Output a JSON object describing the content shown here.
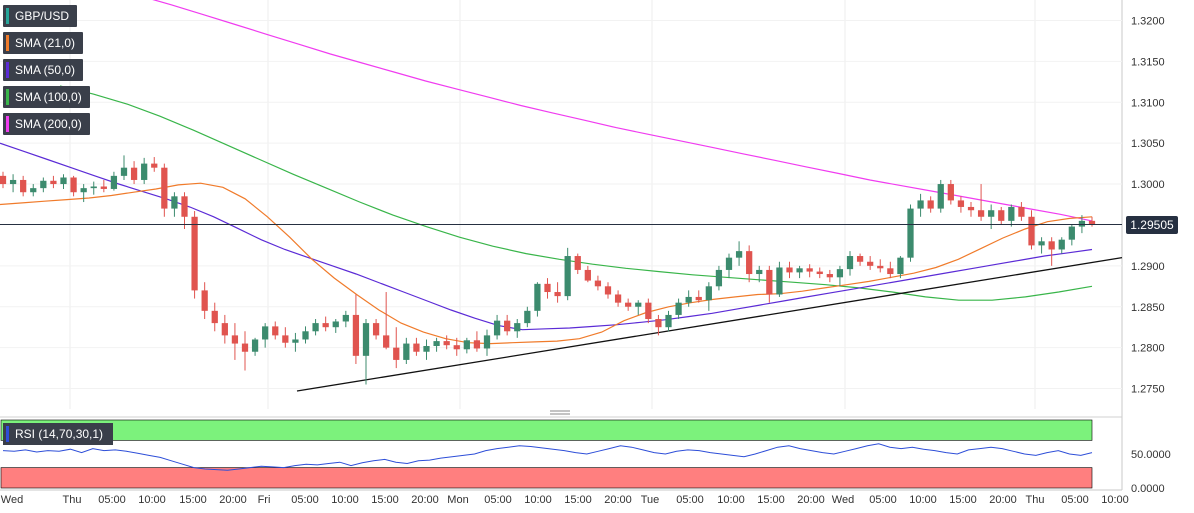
{
  "legend": [
    {
      "label": "GBP/USD",
      "color": "#26a69a"
    },
    {
      "label": "SMA (21,0)",
      "color": "#f07b2b"
    },
    {
      "label": "SMA (50,0)",
      "color": "#5b2bd6"
    },
    {
      "label": "SMA (100,0)",
      "color": "#39b54a"
    },
    {
      "label": "SMA (200,0)",
      "color": "#f03cf0"
    }
  ],
  "current_price_label": "1.29505",
  "rsi_label": "RSI (14,70,30,1)",
  "colors": {
    "up": "#3c8b6e",
    "down": "#e0544f",
    "sma21": "#f07b2b",
    "sma50": "#5b2bd6",
    "sma100": "#39b54a",
    "sma200": "#f03cf0",
    "rsi": "#2d4ed8",
    "overbought": "#7cf27c",
    "oversold": "#ff7f7f"
  },
  "chart_data": [
    {
      "type": "candlestick",
      "title": "",
      "y_ticks": [
        "1.3200",
        "1.3150",
        "1.3100",
        "1.3050",
        "1.3000",
        "1.2900",
        "1.2850",
        "1.2800",
        "1.2750"
      ],
      "ylim": [
        1.2725,
        1.3225
      ],
      "current_price": 1.29505,
      "x_tick_labels": [
        "Wed",
        "Thu",
        "05:00",
        "10:00",
        "15:00",
        "20:00",
        "Fri",
        "05:00",
        "10:00",
        "15:00",
        "20:00",
        "Mon",
        "05:00",
        "10:00",
        "15:00",
        "20:00",
        "Tue",
        "05:00",
        "10:00",
        "15:00",
        "20:00",
        "Wed",
        "05:00",
        "10:00",
        "15:00",
        "20:00",
        "Thu",
        "05:00",
        "10:00"
      ],
      "ohlc": [
        [
          1.301,
          1.3015,
          1.2995,
          1.3
        ],
        [
          1.3,
          1.3012,
          1.299,
          1.3005
        ],
        [
          1.3005,
          1.301,
          1.2985,
          1.299
        ],
        [
          1.299,
          1.3,
          1.2985,
          1.2995
        ],
        [
          1.2995,
          1.3008,
          1.299,
          1.3004
        ],
        [
          1.3004,
          1.301,
          1.2995,
          1.3
        ],
        [
          1.3,
          1.3012,
          1.2994,
          1.3008
        ],
        [
          1.3008,
          1.301,
          1.2985,
          1.299
        ],
        [
          1.299,
          1.3,
          1.2978,
          1.2995
        ],
        [
          1.2995,
          1.3003,
          1.2987,
          1.2997
        ],
        [
          1.2997,
          1.3005,
          1.299,
          1.2994
        ],
        [
          1.2994,
          1.3015,
          1.2992,
          1.301
        ],
        [
          1.301,
          1.3035,
          1.3005,
          1.302
        ],
        [
          1.302,
          1.3028,
          1.3,
          1.3005
        ],
        [
          1.3005,
          1.3032,
          1.3,
          1.3025
        ],
        [
          1.3025,
          1.3033,
          1.3015,
          1.302
        ],
        [
          1.302,
          1.3025,
          1.296,
          1.297
        ],
        [
          1.297,
          1.299,
          1.296,
          1.2985
        ],
        [
          1.2985,
          1.299,
          1.2945,
          1.296
        ],
        [
          1.296,
          1.2967,
          1.286,
          1.287
        ],
        [
          1.287,
          1.288,
          1.2835,
          1.2845
        ],
        [
          1.2845,
          1.2855,
          1.282,
          1.283
        ],
        [
          1.283,
          1.284,
          1.2805,
          1.2815
        ],
        [
          1.2815,
          1.283,
          1.2785,
          1.2805
        ],
        [
          1.2805,
          1.282,
          1.2772,
          1.2795
        ],
        [
          1.2795,
          1.2812,
          1.279,
          1.281
        ],
        [
          1.281,
          1.283,
          1.28,
          1.2826
        ],
        [
          1.2826,
          1.2832,
          1.281,
          1.2815
        ],
        [
          1.2815,
          1.2825,
          1.28,
          1.2806
        ],
        [
          1.2806,
          1.2818,
          1.2795,
          1.281
        ],
        [
          1.281,
          1.2826,
          1.2805,
          1.282
        ],
        [
          1.282,
          1.2835,
          1.2815,
          1.283
        ],
        [
          1.283,
          1.2838,
          1.282,
          1.2825
        ],
        [
          1.2825,
          1.2835,
          1.2818,
          1.2832
        ],
        [
          1.2832,
          1.2845,
          1.2825,
          1.284
        ],
        [
          1.284,
          1.2865,
          1.278,
          1.279
        ],
        [
          1.279,
          1.2835,
          1.2755,
          1.283
        ],
        [
          1.283,
          1.2835,
          1.281,
          1.2815
        ],
        [
          1.2815,
          1.2868,
          1.2798,
          1.28
        ],
        [
          1.28,
          1.2825,
          1.2775,
          1.2785
        ],
        [
          1.2785,
          1.2812,
          1.278,
          1.2805
        ],
        [
          1.2805,
          1.2812,
          1.279,
          1.2795
        ],
        [
          1.2795,
          1.281,
          1.2785,
          1.2802
        ],
        [
          1.2802,
          1.2812,
          1.2795,
          1.2808
        ],
        [
          1.2808,
          1.2815,
          1.2798,
          1.2803
        ],
        [
          1.2803,
          1.2812,
          1.279,
          1.2798
        ],
        [
          1.2798,
          1.2812,
          1.2793,
          1.2809
        ],
        [
          1.2809,
          1.282,
          1.2795,
          1.2799
        ],
        [
          1.2799,
          1.2822,
          1.279,
          1.2815
        ],
        [
          1.2815,
          1.284,
          1.281,
          1.2833
        ],
        [
          1.2833,
          1.284,
          1.2815,
          1.282
        ],
        [
          1.282,
          1.2835,
          1.2812,
          1.283
        ],
        [
          1.283,
          1.285,
          1.2825,
          1.2845
        ],
        [
          1.2845,
          1.288,
          1.2838,
          1.2878
        ],
        [
          1.2878,
          1.2885,
          1.286,
          1.2868
        ],
        [
          1.2868,
          1.288,
          1.2855,
          1.2863
        ],
        [
          1.2863,
          1.2922,
          1.2858,
          1.2912
        ],
        [
          1.2912,
          1.2915,
          1.289,
          1.2895
        ],
        [
          1.2895,
          1.29,
          1.288,
          1.2882
        ],
        [
          1.2882,
          1.2888,
          1.287,
          1.2875
        ],
        [
          1.2875,
          1.288,
          1.286,
          1.2865
        ],
        [
          1.2865,
          1.287,
          1.285,
          1.2855
        ],
        [
          1.2855,
          1.286,
          1.2845,
          1.285
        ],
        [
          1.285,
          1.2858,
          1.284,
          1.2855
        ],
        [
          1.2855,
          1.286,
          1.283,
          1.2835
        ],
        [
          1.2835,
          1.284,
          1.2815,
          1.2825
        ],
        [
          1.2825,
          1.2845,
          1.282,
          1.284
        ],
        [
          1.284,
          1.286,
          1.2835,
          1.2855
        ],
        [
          1.2855,
          1.287,
          1.285,
          1.2862
        ],
        [
          1.2862,
          1.287,
          1.2855,
          1.2858
        ],
        [
          1.2858,
          1.288,
          1.2845,
          1.2875
        ],
        [
          1.2875,
          1.29,
          1.287,
          1.2895
        ],
        [
          1.2895,
          1.2915,
          1.2885,
          1.291
        ],
        [
          1.291,
          1.293,
          1.29,
          1.2918
        ],
        [
          1.2918,
          1.2925,
          1.288,
          1.289
        ],
        [
          1.289,
          1.29,
          1.288,
          1.2895
        ],
        [
          1.2895,
          1.29,
          1.2855,
          1.2865
        ],
        [
          1.2865,
          1.2905,
          1.2862,
          1.2898
        ],
        [
          1.2898,
          1.2905,
          1.2885,
          1.2892
        ],
        [
          1.2892,
          1.29,
          1.2885,
          1.2897
        ],
        [
          1.2897,
          1.2902,
          1.2886,
          1.2893
        ],
        [
          1.2893,
          1.2898,
          1.2885,
          1.289
        ],
        [
          1.289,
          1.2895,
          1.288,
          1.2886
        ],
        [
          1.2886,
          1.29,
          1.2875,
          1.2896
        ],
        [
          1.2896,
          1.2918,
          1.2888,
          1.2912
        ],
        [
          1.2912,
          1.2915,
          1.29,
          1.2905
        ],
        [
          1.2905,
          1.2912,
          1.2895,
          1.29
        ],
        [
          1.29,
          1.2908,
          1.2892,
          1.2897
        ],
        [
          1.2897,
          1.2905,
          1.2885,
          1.289
        ],
        [
          1.289,
          1.2912,
          1.2885,
          1.291
        ],
        [
          1.291,
          1.2975,
          1.2905,
          1.297
        ],
        [
          1.297,
          1.2988,
          1.296,
          1.298
        ],
        [
          1.298,
          1.2985,
          1.2965,
          1.297
        ],
        [
          1.297,
          1.3005,
          1.2965,
          1.3
        ],
        [
          1.3,
          1.3005,
          1.2975,
          1.298
        ],
        [
          1.298,
          1.2985,
          1.2965,
          1.2972
        ],
        [
          1.2972,
          1.2978,
          1.296,
          1.2968
        ],
        [
          1.2968,
          1.3,
          1.2955,
          1.296
        ],
        [
          1.296,
          1.2975,
          1.2945,
          1.2968
        ],
        [
          1.2968,
          1.2972,
          1.295,
          1.2955
        ],
        [
          1.2955,
          1.2975,
          1.2948,
          1.2972
        ],
        [
          1.2972,
          1.2978,
          1.2955,
          1.296
        ],
        [
          1.296,
          1.2968,
          1.292,
          1.2925
        ],
        [
          1.2925,
          1.2935,
          1.2915,
          1.293
        ],
        [
          1.293,
          1.2935,
          1.29,
          1.292
        ],
        [
          1.292,
          1.2935,
          1.2915,
          1.2932
        ],
        [
          1.2932,
          1.295,
          1.2925,
          1.2948
        ],
        [
          1.2948,
          1.2962,
          1.294,
          1.2955
        ],
        [
          1.2955,
          1.296,
          1.2948,
          1.295
        ]
      ],
      "sma21": [
        1.2975,
        1.2977,
        1.2979,
        1.2981,
        1.2983,
        1.2986,
        1.299,
        1.2994,
        1.2999,
        1.3001,
        1.2996,
        1.2982,
        1.296,
        1.2935,
        1.2908,
        1.2885,
        1.2865,
        1.2846,
        1.283,
        1.2819,
        1.2811,
        1.2806,
        1.2805,
        1.2806,
        1.2807,
        1.2808,
        1.2811,
        1.2819,
        1.2833,
        1.2843,
        1.285,
        1.2855,
        1.2859,
        1.2862,
        1.2865,
        1.2866,
        1.2869,
        1.2873,
        1.2877,
        1.2881,
        1.2886,
        1.2891,
        1.2898,
        1.2908,
        1.2921,
        1.2934,
        1.2945,
        1.2954,
        1.2958,
        1.296
      ],
      "sma50": [
        1.305,
        1.304,
        1.303,
        1.302,
        1.301,
        1.3,
        1.2991,
        1.2982,
        1.2972,
        1.296,
        1.2946,
        1.2932,
        1.292,
        1.291,
        1.29,
        1.289,
        1.2879,
        1.2868,
        1.2857,
        1.2846,
        1.2836,
        1.2827,
        1.2822,
        1.2823,
        1.2824,
        1.2826,
        1.2828,
        1.2831,
        1.2834,
        1.2838,
        1.2842,
        1.2847,
        1.2852,
        1.2857,
        1.2862,
        1.2867,
        1.2872,
        1.2877,
        1.2882,
        1.2887,
        1.2892,
        1.2897,
        1.2902,
        1.2907,
        1.2912,
        1.2916,
        1.292
      ],
      "sma100": [
        1.312,
        1.311,
        1.3098,
        1.3083,
        1.3066,
        1.3048,
        1.303,
        1.3012,
        1.2995,
        1.2978,
        1.2962,
        1.2948,
        1.2935,
        1.2924,
        1.2915,
        1.2908,
        1.2902,
        1.2897,
        1.2893,
        1.2889,
        1.2886,
        1.2883,
        1.288,
        1.2877,
        1.2873,
        1.2868,
        1.2862,
        1.2858,
        1.2858,
        1.2862,
        1.2868,
        1.2875
      ],
      "sma200": [
        1.323,
        1.3219,
        1.3207,
        1.3195,
        1.3183,
        1.3171,
        1.3159,
        1.3148,
        1.3137,
        1.3126,
        1.3116,
        1.3106,
        1.3096,
        1.3087,
        1.3078,
        1.3069,
        1.3061,
        1.3053,
        1.3045,
        1.3037,
        1.3029,
        1.3021,
        1.3013,
        1.3005,
        1.2998,
        1.2991,
        1.2984,
        1.2977,
        1.297,
        1.2963,
        1.2955
      ],
      "trendline": [
        [
          0,
          1.2747
        ],
        [
          1,
          1.291
        ]
      ],
      "rsi": {
        "y_ticks": [
          "50.0000",
          "0.0000"
        ],
        "ylim": [
          0,
          100
        ],
        "overbought": 70,
        "oversold": 30,
        "values": [
          55,
          54,
          56,
          53,
          55,
          54,
          57,
          52,
          58,
          55,
          56,
          54,
          51,
          48,
          45,
          40,
          35,
          30,
          28,
          27,
          26,
          28,
          30,
          32,
          31,
          30,
          33,
          35,
          34,
          36,
          38,
          33,
          37,
          40,
          42,
          38,
          36,
          40,
          41,
          44,
          46,
          48,
          50,
          55,
          58,
          60,
          62,
          61,
          59,
          57,
          55,
          52,
          50,
          54,
          58,
          62,
          60,
          56,
          52,
          50,
          54,
          56,
          55,
          52,
          50,
          48,
          46,
          50,
          55,
          60,
          62,
          58,
          55,
          52,
          50,
          54,
          58,
          62,
          65,
          60,
          58,
          60,
          57,
          55,
          52,
          50,
          56,
          58,
          60,
          58,
          54,
          50,
          48,
          52,
          55,
          50,
          48,
          52
        ]
      }
    }
  ]
}
